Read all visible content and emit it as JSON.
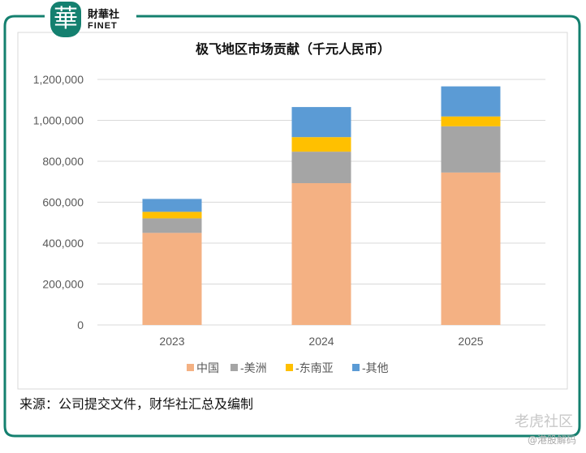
{
  "brand": {
    "name_cn": "財華社",
    "name_en": "FINET",
    "logo_char": "華"
  },
  "source": "来源：公司提交文件，财华社汇总及编制",
  "watermark": {
    "community": "老虎社区",
    "handle": "@港股解码"
  },
  "colors": {
    "frame": "#14806f",
    "china": "#f4b183",
    "americas": "#a5a5a5",
    "sea": "#ffc000",
    "other": "#5b9bd5"
  },
  "chart_data": {
    "type": "bar",
    "stacked": true,
    "title": "极飞地区市场贡献（千元人民币）",
    "categories": [
      "2023",
      "2024",
      "2025"
    ],
    "series": [
      {
        "name": "中国",
        "values": [
          450000,
          693000,
          745000
        ],
        "color": "#f4b183"
      },
      {
        "name": "-美洲",
        "values": [
          71000,
          154000,
          226000
        ],
        "color": "#a5a5a5"
      },
      {
        "name": "-东南亚",
        "values": [
          32000,
          71000,
          48000
        ],
        "color": "#ffc000"
      },
      {
        "name": "-其他",
        "values": [
          63000,
          147000,
          147000
        ],
        "color": "#5b9bd5"
      }
    ],
    "ylim": [
      0,
      1200000
    ],
    "yticks": [
      "0",
      "200,000",
      "400,000",
      "600,000",
      "800,000",
      "1,000,000",
      "1,200,000"
    ],
    "grid": true,
    "legend": "bottom"
  }
}
